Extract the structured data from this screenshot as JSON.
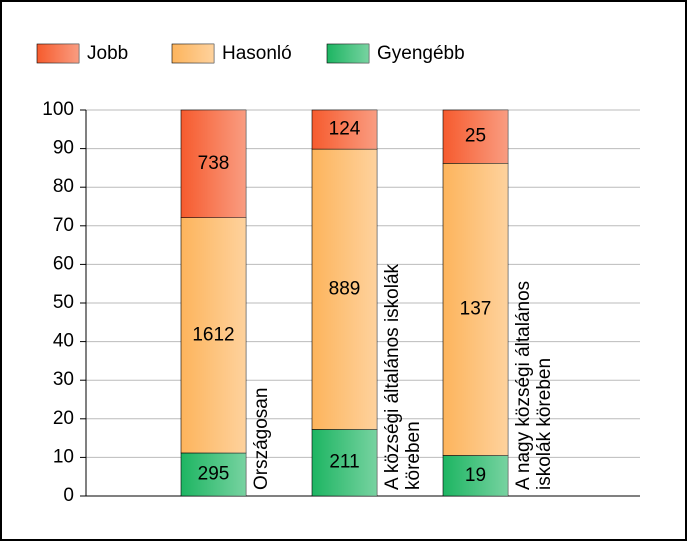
{
  "chart_data": {
    "type": "bar",
    "stacking": "percent",
    "categories": [
      "Országosan",
      "A községi általános iskolák köreben",
      "A nagy községi általános iskolák köreben"
    ],
    "series": [
      {
        "name": "Gyengébb",
        "color": "#1db562",
        "values": [
          295,
          211,
          19
        ]
      },
      {
        "name": "Hasonló",
        "color": "#fdb45c",
        "values": [
          1612,
          889,
          137
        ]
      },
      {
        "name": "Jobb",
        "color": "#f65b2e",
        "values": [
          738,
          124,
          25
        ]
      }
    ],
    "legend_order": [
      "Jobb",
      "Hasonló",
      "Gyengébb"
    ],
    "ylim": [
      0,
      100
    ],
    "yticks": [
      0,
      10,
      20,
      30,
      40,
      50,
      60,
      70,
      80,
      90,
      100
    ],
    "grid": true,
    "legend": "top"
  }
}
